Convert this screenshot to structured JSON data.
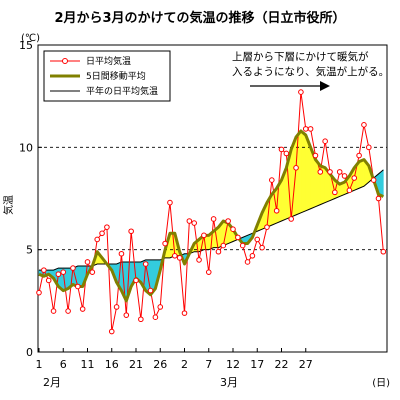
{
  "chart_data": {
    "type": "line",
    "title": "2月から3月のかけての気温の推移（日立市役所）",
    "ylabel": "気温",
    "yunit": "(℃)",
    "xunit": "(日)",
    "ylim": [
      0,
      15
    ],
    "yticks": [
      "0",
      "5",
      "10",
      "15"
    ],
    "grid": "dashed horizontal at 5, 10",
    "xtick_labels": [
      "1",
      "6",
      "11",
      "16",
      "21",
      "26",
      "2",
      "7",
      "12",
      "17",
      "22",
      "27"
    ],
    "month_labels": [
      "2月",
      "3月"
    ],
    "legend_position": "top-left",
    "annotation": "上層から下層にかけて暖気が入るようになり、気温が上がる。",
    "series": [
      {
        "name": "日平均気温",
        "color": "#ff0000",
        "marker": "open-circle",
        "values": [
          2.9,
          4.0,
          3.5,
          2.0,
          3.8,
          3.9,
          2.0,
          4.1,
          3.2,
          2.1,
          4.4,
          3.9,
          5.5,
          5.8,
          6.1,
          1.0,
          2.2,
          4.8,
          1.8,
          5.9,
          3.5,
          1.6,
          4.3,
          3.0,
          1.7,
          2.2,
          5.3,
          7.3,
          4.7,
          4.6,
          1.9,
          6.4,
          6.3,
          4.5,
          5.7,
          3.9,
          6.5,
          4.9,
          5.2,
          6.4,
          6.0,
          5.6,
          5.2,
          4.4,
          4.7,
          5.5,
          5.1,
          6.1,
          8.4,
          6.9,
          9.9,
          9.7,
          6.5,
          9.0,
          12.7,
          10.9,
          10.9,
          9.6,
          8.8,
          10.3,
          8.8,
          7.8,
          8.8,
          8.6,
          7.9,
          8.5,
          9.6,
          11.1,
          10.0,
          8.4,
          7.5,
          4.9
        ]
      },
      {
        "name": "5日間移動平均",
        "color": "#808000",
        "values": [
          3.8,
          3.7,
          3.8,
          3.6,
          3.2,
          3.0,
          3.1,
          3.3,
          3.2,
          3.2,
          3.8,
          4.2,
          4.9,
          4.6,
          4.3,
          4.0,
          3.4,
          3.0,
          2.5,
          3.2,
          3.6,
          3.4,
          3.0,
          2.8,
          3.1,
          4.0,
          5.0,
          5.8,
          5.8,
          4.9,
          4.3,
          4.8,
          5.3,
          5.5,
          5.7,
          5.7,
          5.9,
          6.1,
          6.4,
          6.3,
          6.0,
          5.6,
          5.3,
          5.3,
          5.6,
          6.2,
          6.8,
          7.3,
          7.7,
          8.0,
          8.4,
          9.0,
          9.9,
          10.5,
          10.8,
          10.6,
          10.0,
          9.4,
          9.1,
          9.0,
          8.7,
          8.4,
          8.2,
          8.3,
          8.6,
          9.0,
          9.3,
          9.4,
          9.1,
          8.4,
          7.7,
          7.6
        ]
      },
      {
        "name": "平年の日平均気温",
        "color": "#000000",
        "values": [
          4.0,
          4.0,
          4.0,
          4.0,
          4.1,
          4.1,
          4.1,
          4.1,
          4.2,
          4.2,
          4.2,
          4.2,
          4.3,
          4.3,
          4.3,
          4.3,
          4.3,
          4.4,
          4.4,
          4.4,
          4.4,
          4.4,
          4.5,
          4.5,
          4.5,
          4.5,
          4.6,
          4.6,
          4.7,
          4.7,
          4.8,
          4.8,
          4.9,
          4.9,
          5.0,
          5.0,
          5.1,
          5.1,
          5.2,
          5.3,
          5.4,
          5.5,
          5.6,
          5.7,
          5.8,
          5.9,
          6.0,
          6.1,
          6.2,
          6.3,
          6.4,
          6.5,
          6.6,
          6.7,
          6.8,
          6.9,
          7.0,
          7.1,
          7.2,
          7.3,
          7.4,
          7.5,
          7.6,
          7.7,
          7.8,
          7.9,
          8.0,
          8.1,
          8.3,
          8.5,
          8.7,
          8.9
        ]
      }
    ],
    "fill_above_normal_color": "#ffff33",
    "fill_below_normal_color": "#33ccdd"
  }
}
